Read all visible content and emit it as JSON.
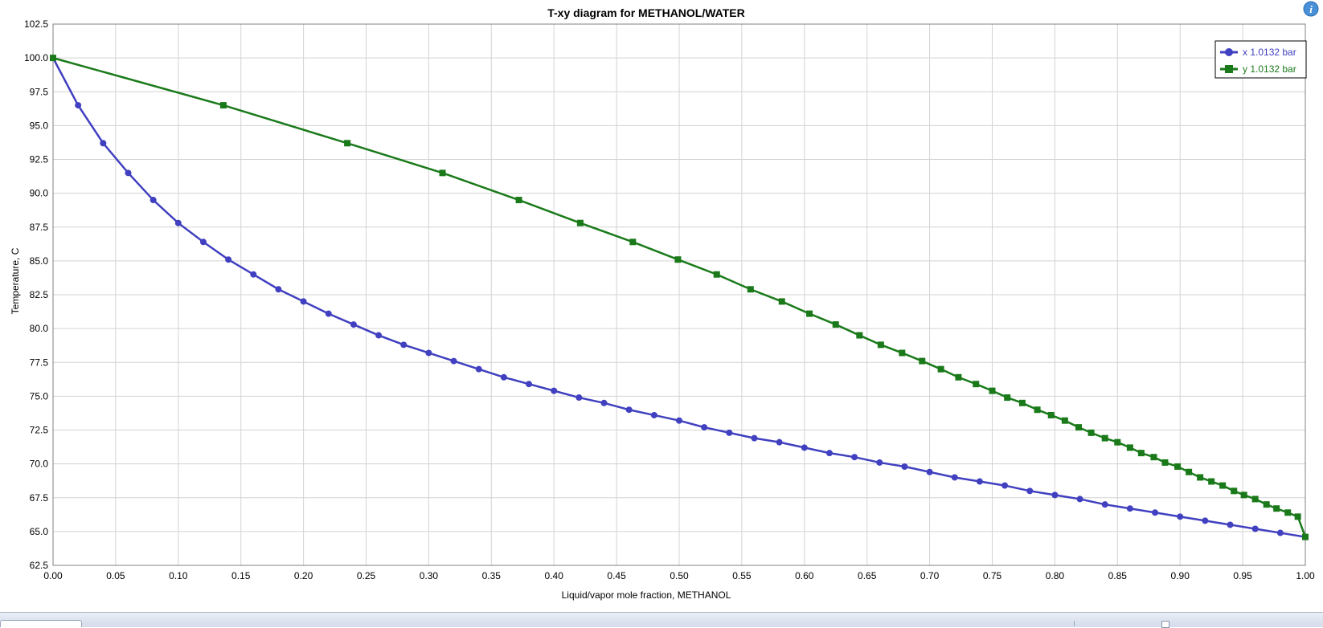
{
  "chart_data": {
    "type": "line",
    "title": "T-xy diagram for METHANOL/WATER",
    "xlabel": "Liquid/vapor mole fraction, METHANOL",
    "ylabel": "Temperature, C",
    "xlim": [
      0,
      1
    ],
    "ylim": [
      62.5,
      102.5
    ],
    "grid": true,
    "legend_position": "top-right",
    "x_ticks": [
      "0.00",
      "0.05",
      "0.10",
      "0.15",
      "0.20",
      "0.25",
      "0.30",
      "0.35",
      "0.40",
      "0.45",
      "0.50",
      "0.55",
      "0.60",
      "0.65",
      "0.70",
      "0.75",
      "0.80",
      "0.85",
      "0.90",
      "0.95",
      "1.00"
    ],
    "y_ticks": [
      "62.5",
      "65.0",
      "67.5",
      "70.0",
      "72.5",
      "75.0",
      "77.5",
      "80.0",
      "82.5",
      "85.0",
      "87.5",
      "90.0",
      "92.5",
      "95.0",
      "97.5",
      "100.0",
      "102.5"
    ],
    "series": [
      {
        "name": "x  1.0132 bar",
        "color": "#4040c0",
        "marker": "circle",
        "points": [
          [
            0.0,
            100.0
          ],
          [
            0.02,
            96.5
          ],
          [
            0.04,
            93.7
          ],
          [
            0.06,
            91.5
          ],
          [
            0.08,
            89.5
          ],
          [
            0.1,
            87.8
          ],
          [
            0.12,
            86.4
          ],
          [
            0.14,
            85.1
          ],
          [
            0.16,
            84.0
          ],
          [
            0.18,
            82.9
          ],
          [
            0.2,
            82.0
          ],
          [
            0.22,
            81.1
          ],
          [
            0.24,
            80.3
          ],
          [
            0.26,
            79.5
          ],
          [
            0.28,
            78.8
          ],
          [
            0.3,
            78.2
          ],
          [
            0.32,
            77.6
          ],
          [
            0.34,
            77.0
          ],
          [
            0.36,
            76.4
          ],
          [
            0.38,
            75.9
          ],
          [
            0.4,
            75.4
          ],
          [
            0.42,
            74.9
          ],
          [
            0.44,
            74.5
          ],
          [
            0.46,
            74.0
          ],
          [
            0.48,
            73.6
          ],
          [
            0.5,
            73.2
          ],
          [
            0.52,
            72.7
          ],
          [
            0.54,
            72.3
          ],
          [
            0.56,
            71.9
          ],
          [
            0.58,
            71.6
          ],
          [
            0.6,
            71.2
          ],
          [
            0.62,
            70.8
          ],
          [
            0.64,
            70.5
          ],
          [
            0.66,
            70.1
          ],
          [
            0.68,
            69.8
          ],
          [
            0.7,
            69.4
          ],
          [
            0.72,
            69.0
          ],
          [
            0.74,
            68.7
          ],
          [
            0.76,
            68.4
          ],
          [
            0.78,
            68.0
          ],
          [
            0.8,
            67.7
          ],
          [
            0.82,
            67.4
          ],
          [
            0.84,
            67.0
          ],
          [
            0.86,
            66.7
          ],
          [
            0.88,
            66.4
          ],
          [
            0.9,
            66.1
          ],
          [
            0.92,
            65.8
          ],
          [
            0.94,
            65.5
          ],
          [
            0.96,
            65.2
          ],
          [
            0.98,
            64.9
          ],
          [
            1.0,
            64.6
          ]
        ]
      },
      {
        "name": "y  1.0132 bar",
        "color": "#1a7a1a",
        "marker": "square",
        "points": [
          [
            0.0,
            100.0
          ],
          [
            0.136,
            96.5
          ],
          [
            0.235,
            93.7
          ],
          [
            0.311,
            91.5
          ],
          [
            0.372,
            89.5
          ],
          [
            0.421,
            87.8
          ],
          [
            0.463,
            86.4
          ],
          [
            0.499,
            85.1
          ],
          [
            0.53,
            84.0
          ],
          [
            0.557,
            82.9
          ],
          [
            0.582,
            82.0
          ],
          [
            0.604,
            81.1
          ],
          [
            0.625,
            80.3
          ],
          [
            0.644,
            79.5
          ],
          [
            0.661,
            78.8
          ],
          [
            0.678,
            78.2
          ],
          [
            0.694,
            77.6
          ],
          [
            0.709,
            77.0
          ],
          [
            0.723,
            76.4
          ],
          [
            0.737,
            75.9
          ],
          [
            0.75,
            75.4
          ],
          [
            0.762,
            74.9
          ],
          [
            0.774,
            74.5
          ],
          [
            0.786,
            74.0
          ],
          [
            0.797,
            73.6
          ],
          [
            0.808,
            73.2
          ],
          [
            0.819,
            72.7
          ],
          [
            0.829,
            72.3
          ],
          [
            0.84,
            71.9
          ],
          [
            0.85,
            71.6
          ],
          [
            0.86,
            71.2
          ],
          [
            0.869,
            70.8
          ],
          [
            0.879,
            70.5
          ],
          [
            0.888,
            70.1
          ],
          [
            0.898,
            69.8
          ],
          [
            0.907,
            69.4
          ],
          [
            0.916,
            69.0
          ],
          [
            0.925,
            68.7
          ],
          [
            0.934,
            68.4
          ],
          [
            0.943,
            68.0
          ],
          [
            0.951,
            67.7
          ],
          [
            0.96,
            67.4
          ],
          [
            0.969,
            67.0
          ],
          [
            0.977,
            66.7
          ],
          [
            0.986,
            66.4
          ],
          [
            0.994,
            66.1
          ],
          [
            1.0,
            64.6
          ]
        ]
      }
    ]
  },
  "info_icon_label": "i"
}
